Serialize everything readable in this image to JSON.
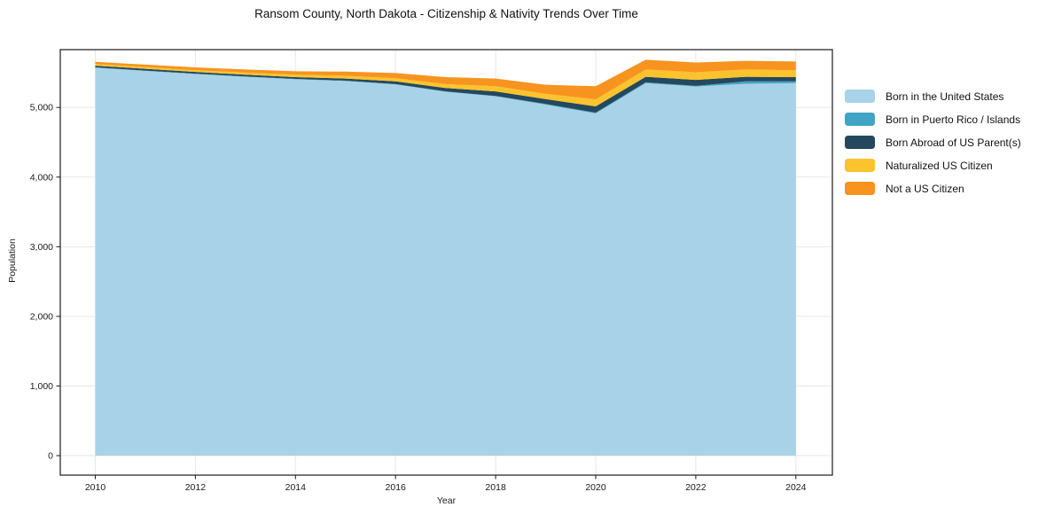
{
  "chart_data": {
    "type": "area",
    "stacked": true,
    "title": "Ransom County, North Dakota - Citizenship & Nativity Trends Over Time",
    "xlabel": "Year",
    "ylabel": "Population",
    "x": [
      2010,
      2011,
      2012,
      2013,
      2014,
      2015,
      2016,
      2017,
      2018,
      2019,
      2020,
      2021,
      2022,
      2023,
      2024
    ],
    "series": [
      {
        "name": "Born in the United States",
        "color": "#a8d2e8",
        "values": [
          5570,
          5525,
          5480,
          5440,
          5405,
          5380,
          5330,
          5225,
          5160,
          5040,
          4915,
          5350,
          5300,
          5340,
          5350
        ]
      },
      {
        "name": "Born in Puerto Rico / Islands",
        "color": "#41a4c4",
        "values": [
          5,
          5,
          5,
          5,
          5,
          5,
          5,
          5,
          5,
          10,
          10,
          10,
          10,
          35,
          25
        ]
      },
      {
        "name": "Born Abroad of US Parent(s)",
        "color": "#24485e",
        "values": [
          25,
          25,
          25,
          25,
          25,
          30,
          40,
          50,
          65,
          70,
          90,
          80,
          85,
          65,
          60
        ]
      },
      {
        "name": "Naturalized US Citizen",
        "color": "#fcc32d",
        "values": [
          25,
          25,
          25,
          30,
          35,
          40,
          45,
          55,
          75,
          75,
          100,
          105,
          110,
          105,
          100
        ]
      },
      {
        "name": "Not a US Citizen",
        "color": "#f7941f",
        "values": [
          30,
          35,
          40,
          45,
          50,
          60,
          75,
          100,
          110,
          130,
          190,
          140,
          140,
          125,
          125
        ]
      }
    ],
    "xlim": [
      2009.3,
      2024.73
    ],
    "ylim": [
      -280,
      5830
    ],
    "xticks": [
      {
        "value": 2010,
        "label": "2010"
      },
      {
        "value": 2012,
        "label": "2012"
      },
      {
        "value": 2014,
        "label": "2014"
      },
      {
        "value": 2016,
        "label": "2016"
      },
      {
        "value": 2018,
        "label": "2018"
      },
      {
        "value": 2020,
        "label": "2020"
      },
      {
        "value": 2022,
        "label": "2022"
      },
      {
        "value": 2024,
        "label": "2024"
      }
    ],
    "yticks": [
      {
        "value": 0,
        "label": "0"
      },
      {
        "value": 1000,
        "label": "1,000"
      },
      {
        "value": 2000,
        "label": "2,000"
      },
      {
        "value": 3000,
        "label": "3,000"
      },
      {
        "value": 4000,
        "label": "4,000"
      },
      {
        "value": 5000,
        "label": "5,000"
      }
    ],
    "grid": true,
    "legend_position": "right outside"
  },
  "styles": {
    "background": "#ffffff",
    "grid_color": "#e7e7e7",
    "spine_color": "#1a1a1a",
    "tick_color": "#1a1a1a",
    "text_color": "#1a1a1a"
  }
}
